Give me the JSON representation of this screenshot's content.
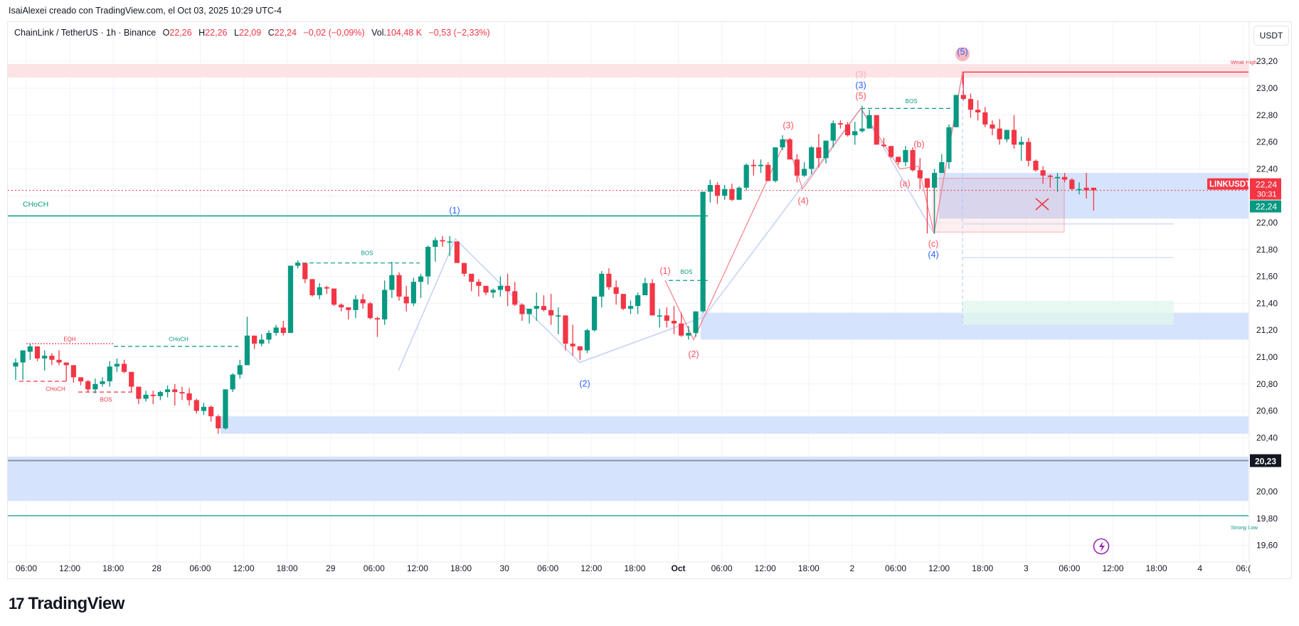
{
  "header": {
    "credit": "IsaiAlexei creado con TradingView.com, el Oct 03, 2025 10:29 UTC-4",
    "symbol": "ChainLink / TetherUS · 1h · Binance",
    "open_label": "O",
    "open": "22,26",
    "high_label": "H",
    "high": "22,26",
    "low_label": "L",
    "low": "22,09",
    "close_label": "C",
    "close": "22,24",
    "change": "−0,02 (−0,09%)",
    "vol_label": "Vol.",
    "volume": "104,48 K",
    "vol_change": "−0,53 (−2,33%)"
  },
  "price_axis": {
    "currency": "USDT",
    "ticks": [
      "23,20",
      "23,00",
      "22,80",
      "22,60",
      "22,40",
      "22,20",
      "22,00",
      "21,80",
      "21,60",
      "21,40",
      "21,20",
      "21,00",
      "20,80",
      "20,60",
      "20,40",
      "20,00",
      "19,80",
      "19,60"
    ],
    "last_price_label": "22,24",
    "countdown": "30:31",
    "bid_label": "22,24",
    "crosshair_label": "20,23",
    "symbol_tag": "LINKUSDT"
  },
  "time_axis": {
    "ticks": [
      "06:00",
      "12:00",
      "18:00",
      "28",
      "06:00",
      "12:00",
      "18:00",
      "29",
      "06:00",
      "12:00",
      "18:00",
      "30",
      "06:00",
      "12:00",
      "18:00",
      "Oct",
      "06:00",
      "12:00",
      "18:00",
      "2",
      "06:00",
      "12:00",
      "18:00",
      "3",
      "06:00",
      "12:00",
      "18:00",
      "4",
      "06:("
    ]
  },
  "annotations": {
    "smc": [
      {
        "text": "CHoCH",
        "color": "#089981"
      },
      {
        "text": "EQH",
        "color": "#f23645"
      },
      {
        "text": "CHoCH",
        "color": "#089981"
      },
      {
        "text": "CHoCH",
        "color": "#f23645"
      },
      {
        "text": "BOS",
        "color": "#f23645"
      },
      {
        "text": "BOS",
        "color": "#089981"
      },
      {
        "text": "BOS",
        "color": "#089981"
      },
      {
        "text": "BOS",
        "color": "#089981"
      },
      {
        "text": "Weak High",
        "color": "#f23645"
      },
      {
        "text": "Strong Low",
        "color": "#089981"
      }
    ],
    "waves_blue": [
      "(1)",
      "(2)",
      "(3)",
      "(4)",
      "(5)"
    ],
    "waves_red": [
      "(1)",
      "(2)",
      "(3)",
      "(4)",
      "(5)",
      "(a)",
      "(b)",
      "(c)"
    ],
    "waves_faded": [
      "(3)"
    ]
  },
  "colors": {
    "up": "#089981",
    "down": "#f23645",
    "zone_blue": "#d6e3fc",
    "zone_red": "#fde3e5",
    "zone_green": "#e0f7ee",
    "wave_blue": "#2962ff",
    "wave_red": "#f7525f",
    "grid": "#f0f3fa"
  },
  "footer": {
    "brand": "TradingView",
    "brand_mark": "17"
  },
  "chart_data": {
    "type": "candlestick",
    "title": "ChainLink / TetherUS · 1h · Binance",
    "xlabel": "",
    "ylabel": "USDT",
    "ylim": [
      19.55,
      23.3
    ],
    "x_ticks": [
      "06:00",
      "12:00",
      "18:00",
      "28",
      "06:00",
      "12:00",
      "18:00",
      "29",
      "06:00",
      "12:00",
      "18:00",
      "30",
      "06:00",
      "12:00",
      "18:00",
      "Oct",
      "06:00",
      "12:00",
      "18:00",
      "2",
      "06:00",
      "12:00",
      "18:00",
      "3",
      "06:00",
      "12:00",
      "18:00",
      "4"
    ],
    "last": {
      "open": 22.26,
      "high": 22.26,
      "low": 22.09,
      "close": 22.24
    },
    "levels": [
      {
        "name": "Weak High",
        "price": 23.12
      },
      {
        "name": "CHoCH",
        "price": 22.05
      },
      {
        "name": "Strong Low",
        "price": 19.82
      },
      {
        "name": "crosshair",
        "price": 20.23
      },
      {
        "name": "last price",
        "price": 22.24
      }
    ],
    "zones": [
      {
        "name": "supply",
        "from": 23.08,
        "to": 23.18,
        "color": "red"
      },
      {
        "name": "demand-1",
        "from": 22.03,
        "to": 22.37,
        "color": "blue"
      },
      {
        "name": "demand-2",
        "from": 21.13,
        "to": 21.33,
        "color": "blue"
      },
      {
        "name": "demand-3",
        "from": 20.43,
        "to": 20.56,
        "color": "blue"
      },
      {
        "name": "demand-4",
        "from": 19.93,
        "to": 20.26,
        "color": "blue"
      },
      {
        "name": "target",
        "from": 21.24,
        "to": 21.42,
        "color": "green"
      }
    ],
    "ohlc": [
      [
        20.93,
        20.99,
        20.83,
        20.96
      ],
      [
        20.96,
        21.04,
        20.83,
        21.05
      ],
      [
        21.04,
        21.1,
        20.98,
        21.08
      ],
      [
        21.08,
        21.07,
        20.97,
        20.99
      ],
      [
        20.99,
        21.05,
        20.9,
        21.01
      ],
      [
        21.01,
        21.03,
        20.94,
        20.98
      ],
      [
        20.98,
        21.05,
        20.94,
        20.96
      ],
      [
        20.96,
        20.96,
        20.82,
        20.94
      ],
      [
        20.94,
        20.94,
        20.81,
        20.85
      ],
      [
        20.85,
        20.85,
        20.79,
        20.82
      ],
      [
        20.82,
        20.83,
        20.74,
        20.76
      ],
      [
        20.76,
        20.84,
        20.73,
        20.8
      ],
      [
        20.8,
        20.85,
        20.78,
        20.82
      ],
      [
        20.82,
        20.97,
        20.78,
        20.93
      ],
      [
        20.93,
        20.99,
        20.89,
        20.95
      ],
      [
        20.95,
        20.98,
        20.88,
        20.89
      ],
      [
        20.89,
        20.88,
        20.74,
        20.78
      ],
      [
        20.78,
        20.78,
        20.65,
        20.69
      ],
      [
        20.69,
        20.75,
        20.67,
        20.72
      ],
      [
        20.72,
        20.75,
        20.65,
        20.71
      ],
      [
        20.71,
        20.75,
        20.68,
        20.74
      ],
      [
        20.74,
        20.79,
        20.7,
        20.76
      ],
      [
        20.76,
        20.8,
        20.64,
        20.74
      ],
      [
        20.74,
        20.78,
        20.68,
        20.73
      ],
      [
        20.73,
        20.77,
        20.64,
        20.68
      ],
      [
        20.68,
        20.69,
        20.58,
        20.6
      ],
      [
        20.6,
        20.66,
        20.57,
        20.63
      ],
      [
        20.63,
        20.64,
        20.52,
        20.56
      ],
      [
        20.56,
        20.57,
        20.43,
        20.47
      ],
      [
        20.47,
        20.76,
        20.46,
        20.76
      ],
      [
        20.76,
        20.88,
        20.74,
        20.87
      ],
      [
        20.87,
        20.98,
        20.84,
        20.94
      ],
      [
        20.94,
        21.3,
        20.94,
        21.16
      ],
      [
        21.16,
        21.14,
        21.06,
        21.1
      ],
      [
        21.1,
        21.17,
        21.08,
        21.13
      ],
      [
        21.13,
        21.2,
        21.1,
        21.18
      ],
      [
        21.18,
        21.24,
        21.16,
        21.22
      ],
      [
        21.22,
        21.27,
        21.16,
        21.18
      ],
      [
        21.18,
        21.68,
        21.18,
        21.68
      ],
      [
        21.68,
        21.72,
        21.66,
        21.7
      ],
      [
        21.7,
        21.7,
        21.55,
        21.58
      ],
      [
        21.58,
        21.58,
        21.45,
        21.46
      ],
      [
        21.46,
        21.55,
        21.43,
        21.52
      ],
      [
        21.52,
        21.53,
        21.47,
        21.51
      ],
      [
        21.51,
        21.51,
        21.38,
        21.39
      ],
      [
        21.39,
        21.4,
        21.34,
        21.37
      ],
      [
        21.37,
        21.37,
        21.28,
        21.35
      ],
      [
        21.35,
        21.46,
        21.29,
        21.43
      ],
      [
        21.43,
        21.47,
        21.36,
        21.4
      ],
      [
        21.4,
        21.41,
        21.28,
        21.29
      ],
      [
        21.29,
        21.3,
        21.15,
        21.28
      ],
      [
        21.28,
        21.57,
        21.24,
        21.5
      ],
      [
        21.5,
        21.71,
        21.44,
        21.61
      ],
      [
        21.61,
        21.63,
        21.42,
        21.45
      ],
      [
        21.45,
        21.53,
        21.34,
        21.4
      ],
      [
        21.4,
        21.59,
        21.38,
        21.56
      ],
      [
        21.56,
        21.62,
        21.44,
        21.6
      ],
      [
        21.6,
        21.83,
        21.54,
        21.82
      ],
      [
        21.82,
        21.89,
        21.71,
        21.87
      ],
      [
        21.87,
        21.9,
        21.82,
        21.86
      ],
      [
        21.86,
        21.9,
        21.75,
        21.86
      ],
      [
        21.86,
        21.85,
        21.7,
        21.7
      ],
      [
        21.7,
        21.7,
        21.6,
        21.62
      ],
      [
        21.62,
        21.6,
        21.49,
        21.56
      ],
      [
        21.56,
        21.58,
        21.45,
        21.53
      ],
      [
        21.53,
        21.53,
        21.46,
        21.48
      ],
      [
        21.48,
        21.51,
        21.44,
        21.5
      ],
      [
        21.5,
        21.6,
        21.45,
        21.53
      ],
      [
        21.53,
        21.62,
        21.38,
        21.49
      ],
      [
        21.49,
        21.56,
        21.38,
        21.39
      ],
      [
        21.39,
        21.4,
        21.27,
        21.32
      ],
      [
        21.32,
        21.36,
        21.25,
        21.36
      ],
      [
        21.36,
        21.48,
        21.27,
        21.38
      ],
      [
        21.38,
        21.46,
        21.34,
        21.35
      ],
      [
        21.35,
        21.47,
        21.24,
        21.31
      ],
      [
        21.31,
        21.37,
        21.17,
        21.31
      ],
      [
        21.31,
        21.31,
        21.05,
        21.1
      ],
      [
        21.1,
        21.24,
        21.01,
        21.08
      ],
      [
        21.08,
        21.08,
        20.98,
        21.05
      ],
      [
        21.05,
        21.21,
        21.03,
        21.2
      ],
      [
        21.2,
        21.44,
        21.19,
        21.45
      ],
      [
        21.45,
        21.64,
        21.37,
        21.62
      ],
      [
        21.62,
        21.66,
        21.5,
        21.52
      ],
      [
        21.52,
        21.57,
        21.39,
        21.47
      ],
      [
        21.47,
        21.42,
        21.35,
        21.36
      ],
      [
        21.36,
        21.42,
        21.32,
        21.38
      ],
      [
        21.38,
        21.48,
        21.32,
        21.46
      ],
      [
        21.46,
        21.59,
        21.47,
        21.55
      ],
      [
        21.55,
        21.58,
        21.35,
        21.31
      ],
      [
        21.31,
        21.36,
        21.22,
        21.31
      ],
      [
        21.31,
        21.37,
        21.22,
        21.27
      ],
      [
        21.27,
        21.38,
        21.17,
        21.25
      ],
      [
        21.25,
        21.33,
        21.15,
        21.16
      ],
      [
        21.16,
        21.23,
        21.13,
        21.18
      ],
      [
        21.18,
        21.34,
        21.15,
        21.34
      ],
      [
        21.34,
        22.23,
        21.33,
        22.23
      ],
      [
        22.23,
        22.32,
        22.15,
        22.28
      ],
      [
        22.28,
        22.3,
        22.14,
        22.2
      ],
      [
        22.2,
        22.28,
        22.17,
        22.25
      ],
      [
        22.25,
        22.29,
        22.16,
        22.17
      ],
      [
        22.17,
        22.27,
        22.17,
        22.26
      ],
      [
        22.26,
        22.44,
        22.24,
        22.43
      ],
      [
        22.43,
        22.47,
        22.35,
        22.42
      ],
      [
        22.42,
        22.47,
        22.37,
        22.43
      ],
      [
        22.43,
        22.45,
        22.31,
        22.31
      ],
      [
        22.31,
        22.55,
        22.3,
        22.56
      ],
      [
        22.56,
        22.65,
        22.54,
        22.62
      ],
      [
        22.62,
        22.63,
        22.47,
        22.47
      ],
      [
        22.47,
        22.51,
        22.3,
        22.35
      ],
      [
        22.35,
        22.45,
        22.34,
        22.4
      ],
      [
        22.4,
        22.57,
        22.36,
        22.56
      ],
      [
        22.56,
        22.66,
        22.41,
        22.48
      ],
      [
        22.48,
        22.61,
        22.44,
        22.61
      ],
      [
        22.61,
        22.76,
        22.56,
        22.74
      ],
      [
        22.74,
        22.76,
        22.7,
        22.73
      ],
      [
        22.73,
        22.75,
        22.64,
        22.65
      ],
      [
        22.65,
        22.75,
        22.58,
        22.68
      ],
      [
        22.68,
        22.87,
        22.67,
        22.7
      ],
      [
        22.7,
        22.84,
        22.73,
        22.8
      ],
      [
        22.8,
        22.79,
        22.58,
        22.58
      ],
      [
        22.58,
        22.63,
        22.56,
        22.57
      ],
      [
        22.57,
        22.55,
        22.48,
        22.49
      ],
      [
        22.49,
        22.49,
        22.43,
        22.45
      ],
      [
        22.45,
        22.57,
        22.42,
        22.54
      ],
      [
        22.54,
        22.56,
        22.38,
        22.39
      ],
      [
        22.39,
        22.48,
        22.25,
        22.33
      ],
      [
        22.33,
        22.33,
        21.92,
        22.26
      ],
      [
        22.26,
        22.4,
        21.92,
        22.37
      ],
      [
        22.37,
        22.51,
        22.37,
        22.45
      ],
      [
        22.45,
        22.73,
        22.4,
        22.71
      ],
      [
        22.71,
        22.95,
        22.71,
        22.95
      ],
      [
        22.95,
        23.12,
        22.91,
        22.92
      ],
      [
        22.92,
        22.96,
        22.78,
        22.84
      ],
      [
        22.84,
        22.91,
        22.76,
        22.82
      ],
      [
        22.82,
        22.86,
        22.71,
        22.73
      ],
      [
        22.73,
        22.76,
        22.65,
        22.7
      ],
      [
        22.7,
        22.77,
        22.58,
        22.62
      ],
      [
        22.62,
        22.69,
        22.6,
        22.69
      ],
      [
        22.69,
        22.8,
        22.55,
        22.58
      ],
      [
        22.58,
        22.64,
        22.46,
        22.6
      ],
      [
        22.6,
        22.63,
        22.42,
        22.46
      ],
      [
        22.46,
        22.47,
        22.38,
        22.39
      ],
      [
        22.39,
        22.42,
        22.29,
        22.35
      ],
      [
        22.35,
        22.36,
        22.26,
        22.34
      ],
      [
        22.34,
        22.37,
        22.23,
        22.34
      ],
      [
        22.34,
        22.37,
        22.3,
        22.32
      ],
      [
        22.32,
        22.33,
        22.24,
        22.25
      ],
      [
        22.25,
        22.3,
        22.21,
        22.25
      ],
      [
        22.26,
        22.37,
        22.18,
        22.24
      ],
      [
        22.26,
        22.26,
        22.09,
        22.24
      ]
    ]
  }
}
